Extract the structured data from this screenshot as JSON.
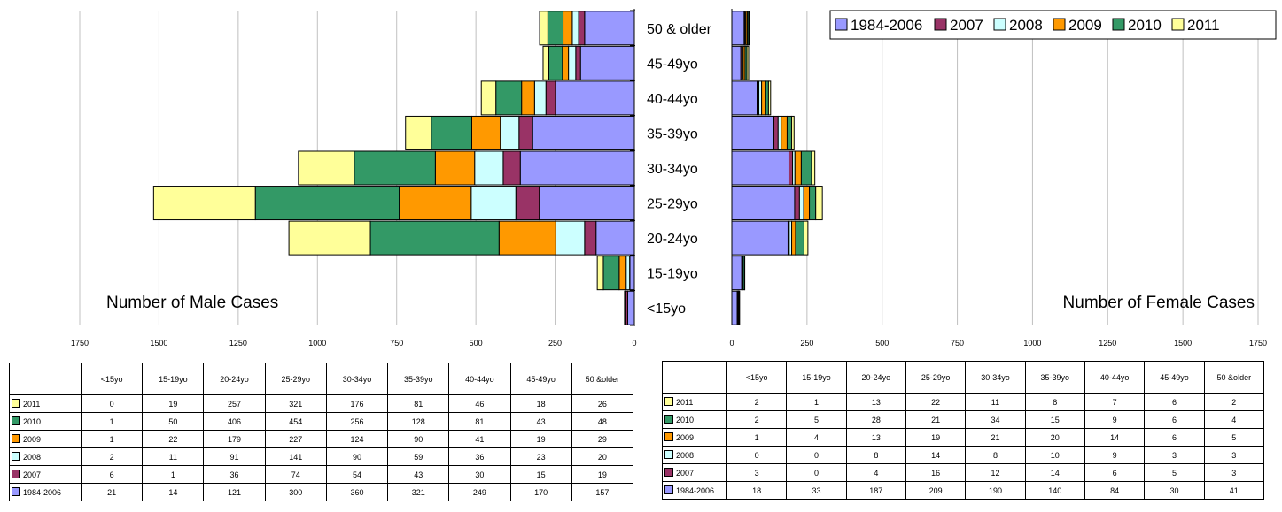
{
  "chart_data": {
    "type": "bar",
    "categories": [
      "<15yo",
      "15-19yo",
      "20-24yo",
      "25-29yo",
      "30-34yo",
      "35-39yo",
      "40-44yo",
      "45-49yo",
      "50 & older"
    ],
    "table_headers": [
      "<15yo",
      "15-19yo",
      "20-24yo",
      "25-29yo",
      "30-34yo",
      "35-39yo",
      "40-44yo",
      "45-49yo",
      "50 &older"
    ],
    "series_order": [
      "1984-2006",
      "2007",
      "2008",
      "2009",
      "2010",
      "2011"
    ],
    "table_order": [
      "2011",
      "2010",
      "2009",
      "2008",
      "2007",
      "1984-2006"
    ],
    "colors": {
      "1984-2006": "#9999ff",
      "2007": "#993366",
      "2008": "#ccffff",
      "2009": "#ff9900",
      "2010": "#339966",
      "2011": "#ffff99"
    },
    "male": {
      "title": "Number of Male Cases",
      "xlim": [
        0,
        1750
      ],
      "ticks": [
        1750,
        1500,
        1250,
        1000,
        750,
        500,
        250,
        0
      ],
      "series": [
        {
          "name": "1984-2006",
          "values": [
            21,
            14,
            121,
            300,
            360,
            321,
            249,
            170,
            157
          ]
        },
        {
          "name": "2007",
          "values": [
            6,
            1,
            36,
            74,
            54,
            43,
            30,
            15,
            19
          ]
        },
        {
          "name": "2008",
          "values": [
            2,
            11,
            91,
            141,
            90,
            59,
            36,
            23,
            20
          ]
        },
        {
          "name": "2009",
          "values": [
            1,
            22,
            179,
            227,
            124,
            90,
            41,
            19,
            29
          ]
        },
        {
          "name": "2010",
          "values": [
            1,
            50,
            406,
            454,
            256,
            128,
            81,
            43,
            48
          ]
        },
        {
          "name": "2011",
          "values": [
            0,
            19,
            257,
            321,
            176,
            81,
            46,
            18,
            26
          ]
        }
      ]
    },
    "female": {
      "title": "Number of Female Cases",
      "xlim": [
        0,
        1750
      ],
      "ticks": [
        0,
        250,
        500,
        750,
        1000,
        1250,
        1500,
        1750
      ],
      "series": [
        {
          "name": "1984-2006",
          "values": [
            18,
            33,
            187,
            209,
            190,
            140,
            84,
            30,
            41
          ]
        },
        {
          "name": "2007",
          "values": [
            3,
            0,
            4,
            16,
            12,
            14,
            6,
            5,
            3
          ]
        },
        {
          "name": "2008",
          "values": [
            0,
            0,
            8,
            14,
            8,
            10,
            9,
            3,
            3
          ]
        },
        {
          "name": "2009",
          "values": [
            1,
            4,
            13,
            19,
            21,
            20,
            14,
            6,
            5
          ]
        },
        {
          "name": "2010",
          "values": [
            2,
            5,
            28,
            21,
            34,
            15,
            9,
            6,
            4
          ]
        },
        {
          "name": "2011",
          "values": [
            2,
            1,
            13,
            22,
            11,
            8,
            7,
            6,
            2
          ]
        }
      ]
    },
    "legend": [
      "1984-2006",
      "2007",
      "2008",
      "2009",
      "2010",
      "2011"
    ],
    "legend_placement": "top-right",
    "grid": true
  }
}
